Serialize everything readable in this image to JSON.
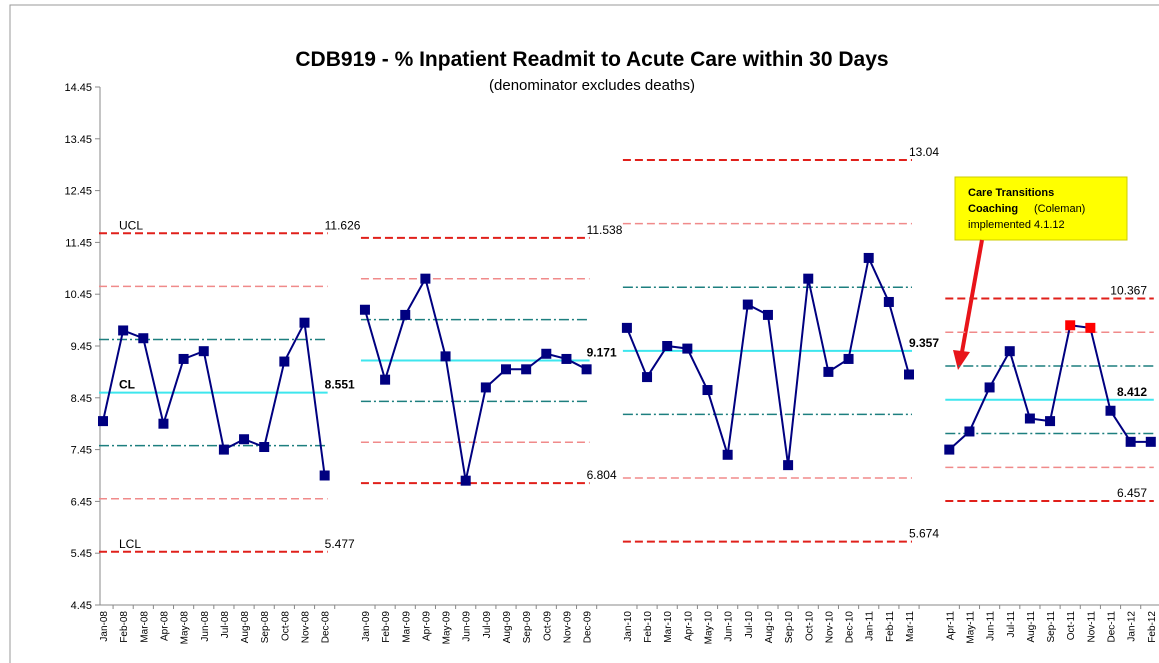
{
  "chart_data": {
    "type": "line",
    "title": "CDB919 - % Inpatient Readmit to Acute Care within 30 Days",
    "subtitle": "(denominator excludes deaths)",
    "ylim": [
      4.45,
      14.45
    ],
    "yticks": [
      4.45,
      5.45,
      6.45,
      7.45,
      8.45,
      9.45,
      10.45,
      11.45,
      12.45,
      13.45,
      14.45
    ],
    "categories": [
      "Jan-08",
      "Feb-08",
      "Mar-08",
      "Apr-08",
      "May-08",
      "Jun-08",
      "Jul-08",
      "Aug-08",
      "Sep-08",
      "Oct-08",
      "Nov-08",
      "Dec-08",
      null,
      "Jan-09",
      "Feb-09",
      "Mar-09",
      "Apr-09",
      "May-09",
      "Jun-09",
      "Jul-09",
      "Aug-09",
      "Sep-09",
      "Oct-09",
      "Nov-09",
      "Dec-09",
      null,
      "Jan-10",
      "Feb-10",
      "Mar-10",
      "Apr-10",
      "May-10",
      "Jun-10",
      "Jul-10",
      "Aug-10",
      "Sep-10",
      "Oct-10",
      "Nov-10",
      "Dec-10",
      "Jan-11",
      "Feb-11",
      "Mar-11",
      null,
      "Apr-11",
      "May-11",
      "Jun-11",
      "Jul-11",
      "Aug-11",
      "Sep-11",
      "Oct-11",
      "Nov-11",
      "Dec-11",
      "Jan-12",
      "Feb-12"
    ],
    "series": [
      {
        "color": "#000080",
        "highlight_color": "#ff0000",
        "highlight": [
          48,
          49
        ],
        "values": [
          8.0,
          9.75,
          9.6,
          7.95,
          9.2,
          9.35,
          7.45,
          7.65,
          7.5,
          9.15,
          9.9,
          6.95,
          null,
          10.15,
          8.8,
          10.05,
          10.75,
          9.25,
          6.85,
          8.65,
          9.0,
          9.0,
          9.3,
          9.2,
          9.0,
          null,
          9.8,
          8.85,
          9.45,
          9.4,
          8.6,
          7.35,
          10.25,
          10.05,
          7.15,
          10.75,
          8.95,
          9.2,
          11.15,
          10.3,
          8.9,
          null,
          7.45,
          7.8,
          8.65,
          9.35,
          8.05,
          8.0,
          9.85,
          9.8,
          8.2,
          7.6,
          7.6
        ]
      }
    ],
    "limit_names": {
      "ucl": "UCL",
      "cl": "CL",
      "lcl": "LCL"
    },
    "limits": [
      {
        "ucl": 11.626,
        "cl": 8.551,
        "lcl": 5.477,
        "plus2": 10.601,
        "plus1": 9.576,
        "minus1": 7.526,
        "minus2": 6.501
      },
      {
        "ucl": 11.538,
        "cl": 9.171,
        "lcl": 6.804,
        "plus2": 10.749,
        "plus1": 9.96,
        "minus1": 8.382,
        "minus2": 7.593
      },
      {
        "ucl": 13.04,
        "cl": 9.357,
        "lcl": 5.674,
        "plus2": 11.812,
        "plus1": 10.585,
        "minus1": 8.129,
        "minus2": 6.902
      },
      {
        "ucl": 10.367,
        "cl": 8.412,
        "lcl": 6.457,
        "plus2": 9.716,
        "plus1": 9.064,
        "minus1": 7.76,
        "minus2": 7.108
      }
    ],
    "annotation": {
      "line1": "Care Transitions",
      "line2": "Coaching",
      "line2b": "(Coleman)",
      "line3": "implemented 4.1.12"
    }
  }
}
